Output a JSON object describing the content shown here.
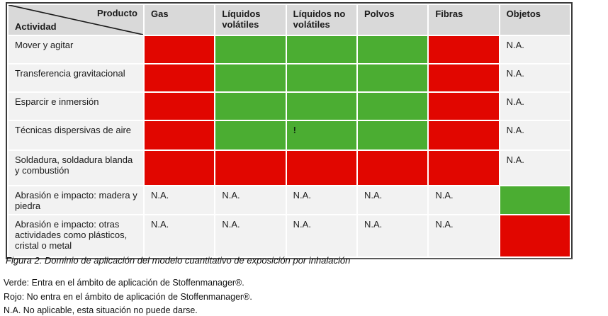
{
  "colors": {
    "red": "#e10600",
    "green": "#4bad32",
    "header_bg": "#d9d9d9",
    "light_bg": "#f2f2f2"
  },
  "table": {
    "corner": {
      "top_label": "Producto",
      "bottom_label": "Actividad"
    },
    "columns": [
      "Gas",
      "Líquidos volátiles",
      "Líquidos no volátiles",
      "Polvos",
      "Fibras",
      "Objetos"
    ],
    "rows": [
      {
        "label": "Mover y agitar",
        "cells": [
          {
            "state": "red",
            "text": ""
          },
          {
            "state": "green",
            "text": ""
          },
          {
            "state": "green",
            "text": ""
          },
          {
            "state": "green",
            "text": ""
          },
          {
            "state": "red",
            "text": ""
          },
          {
            "state": "na",
            "text": "N.A."
          }
        ]
      },
      {
        "label": "Transferencia gravitacional",
        "cells": [
          {
            "state": "red",
            "text": ""
          },
          {
            "state": "green",
            "text": ""
          },
          {
            "state": "green",
            "text": ""
          },
          {
            "state": "green",
            "text": ""
          },
          {
            "state": "red",
            "text": ""
          },
          {
            "state": "na",
            "text": "N.A."
          }
        ]
      },
      {
        "label": "Esparcir e inmersión",
        "cells": [
          {
            "state": "red",
            "text": ""
          },
          {
            "state": "green",
            "text": ""
          },
          {
            "state": "green",
            "text": ""
          },
          {
            "state": "green",
            "text": ""
          },
          {
            "state": "red",
            "text": ""
          },
          {
            "state": "na",
            "text": "N.A."
          }
        ]
      },
      {
        "label": "Técnicas dispersivas de aire",
        "cells": [
          {
            "state": "red",
            "text": ""
          },
          {
            "state": "green",
            "text": ""
          },
          {
            "state": "green",
            "text": "!"
          },
          {
            "state": "green",
            "text": ""
          },
          {
            "state": "red",
            "text": ""
          },
          {
            "state": "na",
            "text": "N.A."
          }
        ]
      },
      {
        "label": "Soldadura, soldadura blanda y combustión",
        "cells": [
          {
            "state": "red",
            "text": ""
          },
          {
            "state": "red",
            "text": ""
          },
          {
            "state": "red",
            "text": ""
          },
          {
            "state": "red",
            "text": ""
          },
          {
            "state": "red",
            "text": ""
          },
          {
            "state": "na",
            "text": "N.A."
          }
        ]
      },
      {
        "label": "Abrasión e impacto: madera y piedra",
        "cells": [
          {
            "state": "na",
            "text": "N.A."
          },
          {
            "state": "na",
            "text": "N.A."
          },
          {
            "state": "na",
            "text": "N.A."
          },
          {
            "state": "na",
            "text": "N.A."
          },
          {
            "state": "na",
            "text": "N.A."
          },
          {
            "state": "green",
            "text": ""
          }
        ]
      },
      {
        "label": "Abrasión e impacto: otras actividades como plásticos, cristal o metal",
        "cells": [
          {
            "state": "na",
            "text": "N.A."
          },
          {
            "state": "na",
            "text": "N.A."
          },
          {
            "state": "na",
            "text": "N.A."
          },
          {
            "state": "na",
            "text": "N.A."
          },
          {
            "state": "na",
            "text": "N.A."
          },
          {
            "state": "red",
            "text": ""
          }
        ]
      }
    ]
  },
  "caption": "Figura 2. Dominio de aplicación del modelo cuantitativo de exposición por inhalación",
  "legend": {
    "lines": [
      "Verde: Entra en el ámbito de aplicación de Stoffenmanager®.",
      "Rojo: No entra en el ámbito de aplicación de Stoffenmanager®.",
      "N.A. No aplicable, esta situación no puede darse."
    ]
  }
}
